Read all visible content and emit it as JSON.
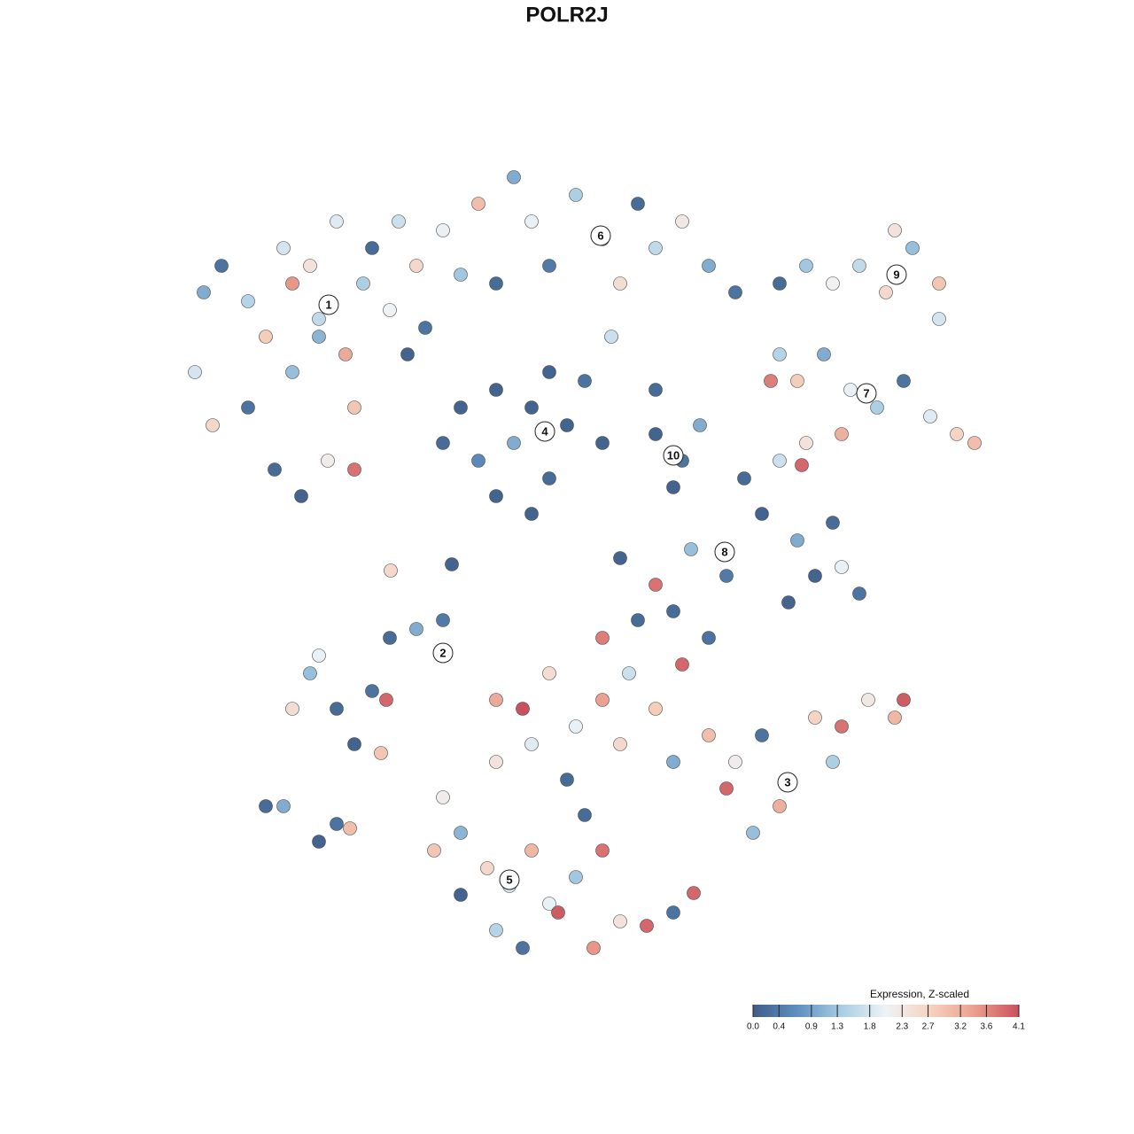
{
  "chart_data": {
    "type": "scatter",
    "title": "POLR2J",
    "xlim": [
      -64,
      64
    ],
    "ylim": [
      -64,
      64
    ],
    "x": [
      -41,
      -39,
      -36,
      -34,
      -32,
      -31,
      -29,
      -28,
      -26,
      -25,
      -24,
      -23,
      -22,
      -20,
      -19,
      -18,
      -17,
      -16,
      -14,
      -12,
      -10,
      -33,
      -30,
      -27,
      -24,
      -42,
      -40,
      -36,
      -31,
      -28,
      -6,
      -4,
      -2,
      1,
      4,
      6,
      8,
      10,
      13,
      16,
      19,
      5,
      -8,
      -12,
      -10,
      -8,
      -6,
      -4,
      -2,
      0,
      2,
      -8,
      -4,
      -14,
      4,
      -2,
      10,
      13,
      12,
      15,
      10,
      24,
      27,
      30,
      33,
      36,
      39,
      42,
      42,
      37,
      24,
      26,
      29,
      32,
      35,
      38,
      41,
      44,
      46,
      23,
      31,
      20,
      22,
      24,
      27,
      26,
      28,
      31,
      33,
      25,
      30,
      14,
      18,
      10,
      12,
      6,
      26.5,
      -31,
      -29,
      -26,
      -24,
      -22,
      -20,
      -17,
      -14,
      -28,
      -21,
      -20.4,
      -34,
      -32,
      -28,
      -26,
      -24.5,
      -8,
      -5,
      -2,
      1,
      4,
      7,
      10,
      13,
      16,
      19,
      22,
      25,
      28,
      31,
      34,
      37,
      38,
      24,
      21,
      18,
      12,
      6,
      0,
      -4,
      -8,
      4,
      8,
      16,
      30,
      -14,
      -15,
      -12,
      -9,
      -6.5,
      -4,
      -2,
      -1,
      1,
      4,
      6,
      9,
      12,
      -8,
      -5,
      3,
      -12,
      2,
      14.3,
      -19.9,
      -13
    ],
    "y": [
      31,
      34,
      30,
      26,
      36,
      22,
      34,
      28,
      39,
      24,
      18,
      32,
      36,
      29,
      39,
      24,
      34,
      27,
      38,
      33,
      41,
      11,
      8,
      12,
      11,
      22,
      16,
      18,
      32,
      26,
      44,
      39,
      34,
      42,
      37,
      32,
      41,
      36,
      39,
      34,
      31,
      26,
      32,
      18,
      12,
      20,
      14,
      18,
      10,
      16,
      21,
      8,
      6,
      14,
      14,
      22,
      15,
      12,
      9,
      16,
      20,
      32,
      34,
      32,
      34,
      31,
      36,
      32,
      28,
      38,
      24,
      21,
      24,
      20,
      18,
      21,
      17,
      15,
      14,
      21,
      15,
      10,
      6,
      12,
      14,
      3,
      -1,
      0,
      -3,
      -4,
      5,
      2,
      -1,
      -2,
      -5,
      1,
      11.5,
      -16,
      -12,
      -16,
      -20,
      -14,
      -8,
      -7,
      -6,
      -10,
      -21,
      -15,
      -27,
      -27,
      -31,
      -29,
      -29.5,
      -15,
      -16,
      -12,
      -18,
      -15,
      -12,
      -16,
      -11,
      -19,
      -22,
      -19,
      -24,
      -17,
      -18,
      -15,
      -17,
      -15,
      -27,
      -30,
      -25,
      -22,
      -20,
      -24,
      -20,
      -22,
      -8,
      -6,
      -8,
      -22,
      -26,
      -32,
      -30,
      -34,
      -36,
      -32,
      -38,
      -39,
      -35,
      -32,
      -40,
      -40.5,
      -39,
      -41,
      -43,
      -43,
      -37,
      -28,
      -36.8,
      -0.4,
      0.3
    ],
    "expression": [
      1.0,
      0.3,
      1.5,
      2.8,
      1.8,
      1.2,
      2.4,
      1.6,
      1.9,
      3.3,
      2.9,
      1.4,
      0.2,
      2.1,
      1.7,
      0.1,
      2.6,
      0.3,
      2.0,
      1.3,
      3.0,
      0.2,
      0.1,
      2.2,
      3.8,
      1.8,
      2.6,
      0.3,
      3.5,
      1.1,
      1.0,
      2.0,
      0.4,
      1.4,
      1.2,
      2.5,
      0.2,
      1.6,
      2.3,
      1.0,
      0.3,
      1.7,
      0.2,
      0.1,
      0.6,
      0.1,
      1.0,
      0.1,
      0.2,
      0.1,
      0.3,
      0.1,
      0.1,
      0.2,
      0.1,
      0.1,
      0.1,
      0.3,
      0.1,
      1.0,
      0.2,
      0.2,
      1.3,
      2.1,
      1.6,
      2.6,
      1.2,
      2.9,
      1.8,
      2.4,
      1.5,
      2.8,
      1.0,
      2.0,
      1.4,
      0.3,
      1.9,
      2.7,
      3.0,
      3.7,
      3.2,
      0.2,
      0.1,
      1.7,
      2.4,
      1.0,
      0.1,
      2.0,
      0.3,
      0.1,
      0.2,
      1.2,
      0.4,
      3.8,
      0.2,
      0.1,
      3.9,
      2.5,
      1.2,
      0.2,
      0.1,
      0.3,
      0.2,
      1.0,
      0.4,
      2.0,
      2.9,
      3.9,
      0.2,
      1.0,
      0.1,
      0.3,
      3.0,
      3.3,
      4.1,
      2.5,
      2.0,
      3.4,
      1.7,
      2.8,
      3.9,
      3.0,
      2.2,
      0.3,
      1.5,
      2.7,
      3.8,
      2.3,
      3.1,
      4.0,
      3.2,
      1.2,
      3.9,
      1.0,
      2.6,
      0.2,
      1.9,
      2.4,
      3.7,
      0.2,
      0.3,
      1.4,
      2.2,
      2.9,
      1.1,
      2.6,
      1.8,
      3.1,
      2.0,
      4.0,
      1.3,
      3.8,
      2.4,
      3.9,
      0.3,
      1.5,
      0.3,
      3.5,
      0.1,
      0.2,
      3.9,
      2.6,
      0.1
    ],
    "clusters": [
      {
        "label": "1",
        "x": -26.9,
        "y": 29.6
      },
      {
        "label": "2",
        "x": -14,
        "y": -9.7
      },
      {
        "label": "3",
        "x": 24.9,
        "y": -24.3
      },
      {
        "label": "4",
        "x": -2.5,
        "y": 15.3
      },
      {
        "label": "5",
        "x": -6.5,
        "y": -35.3
      },
      {
        "label": "6",
        "x": 3.8,
        "y": 37.4
      },
      {
        "label": "7",
        "x": 33.8,
        "y": 19.6
      },
      {
        "label": "8",
        "x": 17.8,
        "y": 1.7
      },
      {
        "label": "9",
        "x": 37.2,
        "y": 33
      },
      {
        "label": "10",
        "x": 12,
        "y": 12.6
      }
    ],
    "colorbar": {
      "title": "Expression, Z-scaled",
      "clim": [
        0,
        4.1
      ],
      "colors": [
        "#3f5d88",
        "#5f8fc0",
        "#a9cde3",
        "#eef3f7",
        "#f6d2c0",
        "#eba08e",
        "#c9505c"
      ],
      "ticks": [
        {
          "value": 0,
          "label": "0.0"
        },
        0.4,
        0.9,
        1.3,
        1.8,
        2.3,
        2.7,
        3.2,
        3.6,
        4.1
      ]
    }
  }
}
